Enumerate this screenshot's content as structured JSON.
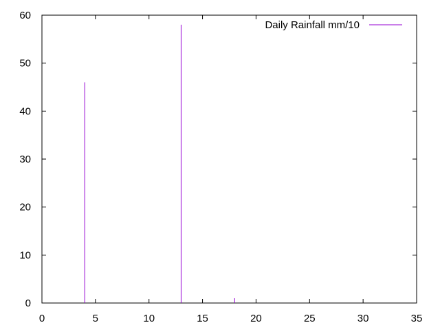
{
  "chart_data": {
    "type": "bar",
    "style": "impulses",
    "series": [
      {
        "name": "Daily Rainfall mm/10",
        "color": "#9400d3",
        "points": [
          {
            "x": 4,
            "y": 46
          },
          {
            "x": 13,
            "y": 58
          },
          {
            "x": 18,
            "y": 1
          }
        ]
      }
    ],
    "xlim": [
      0,
      35
    ],
    "ylim": [
      0,
      60
    ],
    "xticks": [
      0,
      5,
      10,
      15,
      20,
      25,
      30,
      35
    ],
    "yticks": [
      0,
      10,
      20,
      30,
      40,
      50,
      60
    ],
    "grid": false,
    "legend_position": "top-right",
    "title": "",
    "xlabel": "",
    "ylabel": ""
  }
}
